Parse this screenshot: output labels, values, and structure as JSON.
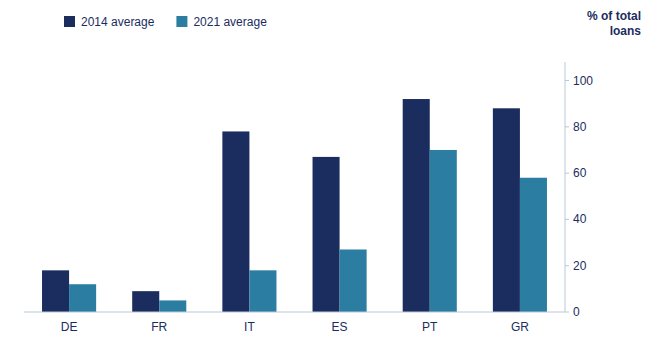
{
  "chart_data": {
    "type": "bar",
    "y_label": [
      "% of total",
      "loans"
    ],
    "categories": [
      "DE",
      "FR",
      "IT",
      "ES",
      "PT",
      "GR"
    ],
    "series": [
      {
        "name": "2014 average",
        "color": "#1b2d5e",
        "values": [
          18,
          9,
          78,
          67,
          92,
          88
        ]
      },
      {
        "name": "2021 average",
        "color": "#2b7ea1",
        "values": [
          12,
          5,
          18,
          27,
          70,
          58
        ]
      }
    ],
    "ylim": [
      0,
      108
    ],
    "yticks": [
      0,
      20,
      40,
      60,
      80,
      100
    ],
    "grid": false,
    "legend": "top"
  }
}
